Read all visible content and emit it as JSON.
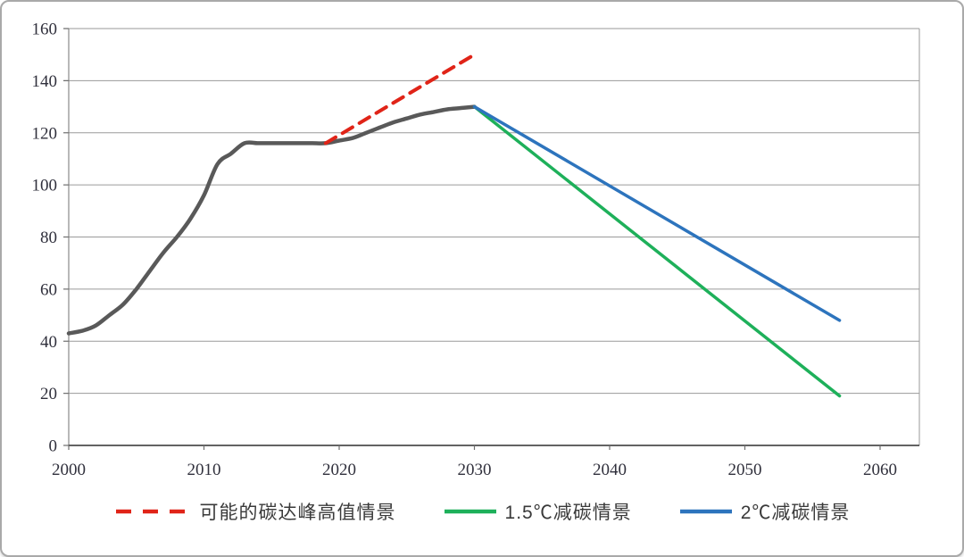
{
  "chart_data": {
    "type": "line",
    "xlabel": "",
    "ylabel": "",
    "xticks": [
      2000,
      2010,
      2020,
      2030,
      2040,
      2050,
      2060
    ],
    "yticks": [
      0,
      20,
      40,
      60,
      80,
      100,
      120,
      140,
      160
    ],
    "xlim": [
      2000,
      2063
    ],
    "ylim": [
      0,
      160
    ],
    "grid": "horizontal",
    "legend_position": "bottom",
    "series": [
      {
        "id": "historical-emissions",
        "name": "",
        "color": "#595959",
        "style": "solid",
        "width": 4.5,
        "in_legend": false,
        "points": [
          [
            2000,
            43
          ],
          [
            2001,
            44
          ],
          [
            2002,
            46
          ],
          [
            2003,
            50
          ],
          [
            2004,
            54
          ],
          [
            2005,
            60
          ],
          [
            2006,
            67
          ],
          [
            2007,
            74
          ],
          [
            2008,
            80
          ],
          [
            2009,
            87
          ],
          [
            2010,
            96
          ],
          [
            2011,
            108
          ],
          [
            2012,
            112
          ],
          [
            2013,
            116
          ],
          [
            2014,
            116
          ],
          [
            2015,
            116
          ],
          [
            2016,
            116
          ],
          [
            2017,
            116
          ],
          [
            2018,
            116
          ],
          [
            2019,
            116
          ],
          [
            2020,
            117
          ],
          [
            2021,
            118
          ],
          [
            2022,
            120
          ],
          [
            2023,
            122
          ],
          [
            2024,
            124
          ],
          [
            2025,
            125.5
          ],
          [
            2026,
            127
          ],
          [
            2027,
            128
          ],
          [
            2028,
            129
          ],
          [
            2029,
            129.5
          ],
          [
            2030,
            130
          ]
        ]
      },
      {
        "id": "peak-high-scenario",
        "name": "可能的碳达峰高值情景",
        "color": "#e02418",
        "style": "dashed",
        "width": 4,
        "in_legend": true,
        "points": [
          [
            2019,
            116
          ],
          [
            2030,
            150
          ]
        ]
      },
      {
        "id": "scenario-1p5c",
        "name": "1.5℃减碳情景",
        "color": "#1eb05a",
        "style": "solid",
        "width": 3.5,
        "in_legend": true,
        "points": [
          [
            2030,
            130
          ],
          [
            2057,
            19
          ]
        ]
      },
      {
        "id": "scenario-2c",
        "name": "2℃减碳情景",
        "color": "#2d74bd",
        "style": "solid",
        "width": 3.5,
        "in_legend": true,
        "points": [
          [
            2030,
            130
          ],
          [
            2057,
            48
          ]
        ]
      }
    ]
  }
}
